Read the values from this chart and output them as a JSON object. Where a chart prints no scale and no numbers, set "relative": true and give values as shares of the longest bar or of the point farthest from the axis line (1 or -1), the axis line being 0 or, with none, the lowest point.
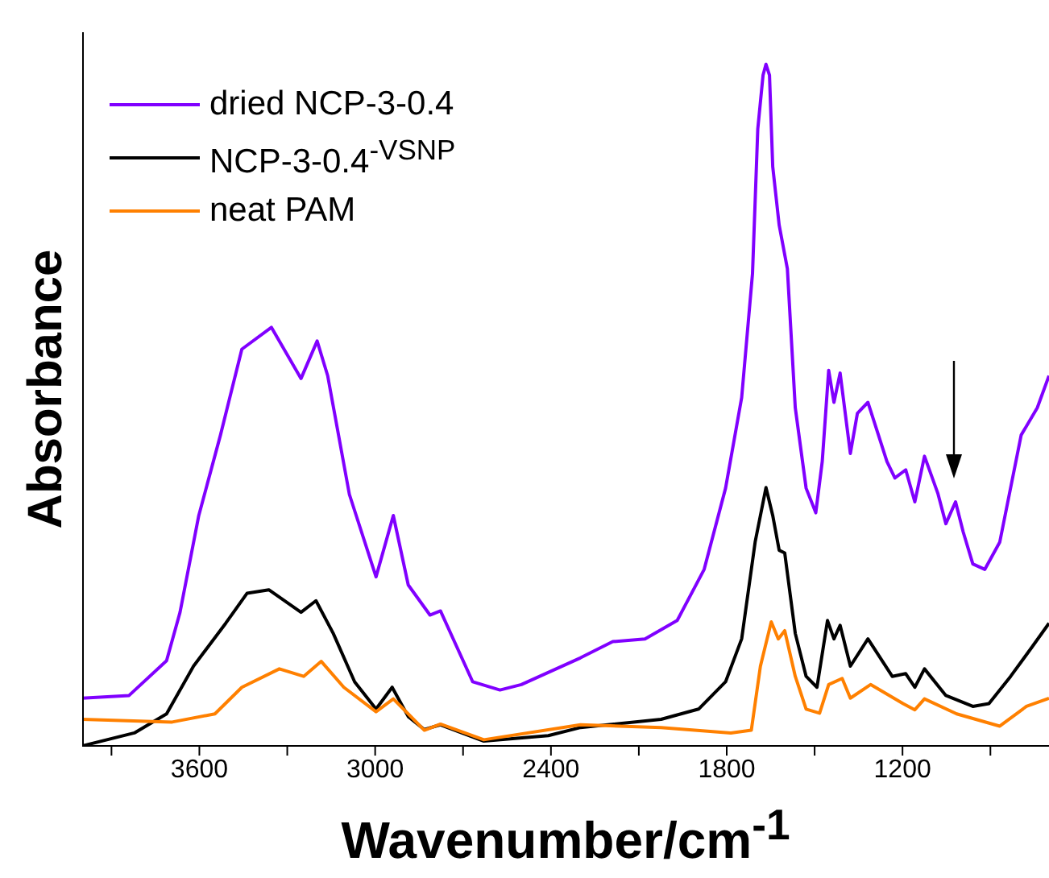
{
  "chart_data": {
    "type": "line",
    "xlabel": "Wavenumber/cm$^{-1}$",
    "ylabel": "Absorbance",
    "relative": true,
    "legend": "top left",
    "line_style": "solid",
    "marker": "none",
    "xlim": [
      4000,
      700
    ],
    "xticks": [
      {
        "value": 3900,
        "label": null
      },
      3600,
      {
        "value": 3300,
        "label": null
      },
      3000,
      {
        "value": 2700,
        "label": null
      },
      2400,
      {
        "value": 2100,
        "label": null
      },
      1800,
      {
        "value": 1500,
        "label": null
      },
      1200,
      {
        "value": 900,
        "label": null
      }
    ],
    "series": [
      {
        "name": "dried NCP-3-0.4",
        "color": "#8000ff",
        "x": [
          4000,
          3840,
          3712,
          3666,
          3602,
          3528,
          3455,
          3354,
          3253,
          3198,
          3162,
          3088,
          2997,
          2938,
          2887,
          2813,
          2777,
          2667,
          2574,
          2501,
          2300,
          2189,
          2079,
          1969,
          1877,
          1804,
          1749,
          1712,
          1694,
          1676,
          1666,
          1654,
          1643,
          1621,
          1593,
          1566,
          1529,
          1496,
          1474,
          1452,
          1434,
          1413,
          1378,
          1354,
          1318,
          1253,
          1226,
          1189,
          1158,
          1125,
          1079,
          1052,
          1019,
          993,
          960,
          919,
          868,
          795,
          740,
          700
        ],
        "values": [
          0.07,
          0.074,
          0.125,
          0.196,
          0.338,
          0.456,
          0.582,
          0.614,
          0.539,
          0.594,
          0.543,
          0.369,
          0.248,
          0.338,
          0.236,
          0.192,
          0.198,
          0.094,
          0.082,
          0.09,
          0.129,
          0.153,
          0.157,
          0.184,
          0.259,
          0.378,
          0.511,
          0.693,
          0.905,
          0.984,
          1.0,
          0.984,
          0.85,
          0.764,
          0.7,
          0.496,
          0.378,
          0.342,
          0.417,
          0.551,
          0.504,
          0.547,
          0.429,
          0.488,
          0.504,
          0.417,
          0.393,
          0.405,
          0.358,
          0.425,
          0.37,
          0.326,
          0.358,
          0.314,
          0.267,
          0.259,
          0.299,
          0.456,
          0.496,
          0.543
        ]
      },
      {
        "name": "NCP-3-0.4$^{-VSNP}$",
        "color": "#000000",
        "x": [
          4000,
          3822,
          3712,
          3620,
          3510,
          3437,
          3363,
          3253,
          3202,
          3143,
          3070,
          2997,
          2942,
          2887,
          2832,
          2777,
          2629,
          2409,
          2299,
          2024,
          1896,
          1804,
          1749,
          1703,
          1666,
          1643,
          1621,
          1602,
          1566,
          1529,
          1492,
          1456,
          1434,
          1413,
          1378,
          1318,
          1235,
          1189,
          1158,
          1125,
          1052,
          960,
          905,
          831,
          758,
          700
        ],
        "values": [
          0.0,
          0.019,
          0.047,
          0.117,
          0.18,
          0.224,
          0.229,
          0.196,
          0.213,
          0.165,
          0.094,
          0.054,
          0.086,
          0.043,
          0.024,
          0.031,
          0.007,
          0.015,
          0.027,
          0.039,
          0.054,
          0.094,
          0.157,
          0.299,
          0.379,
          0.338,
          0.287,
          0.283,
          0.165,
          0.102,
          0.086,
          0.184,
          0.157,
          0.177,
          0.117,
          0.157,
          0.102,
          0.106,
          0.086,
          0.113,
          0.074,
          0.058,
          0.062,
          0.102,
          0.145,
          0.18
        ]
      },
      {
        "name": "neat PAM",
        "color": "#ff8000",
        "x": [
          4000,
          3693,
          3547,
          3455,
          3327,
          3244,
          3184,
          3107,
          2997,
          2938,
          2832,
          2777,
          2629,
          2299,
          2024,
          1786,
          1716,
          1685,
          1648,
          1624,
          1602,
          1566,
          1529,
          1483,
          1452,
          1406,
          1378,
          1309,
          1198,
          1158,
          1125,
          1015,
          868,
          777,
          700
        ],
        "values": [
          0.039,
          0.035,
          0.047,
          0.086,
          0.113,
          0.102,
          0.124,
          0.086,
          0.05,
          0.069,
          0.023,
          0.032,
          0.009,
          0.031,
          0.027,
          0.019,
          0.023,
          0.117,
          0.182,
          0.157,
          0.169,
          0.102,
          0.054,
          0.048,
          0.09,
          0.099,
          0.07,
          0.09,
          0.062,
          0.053,
          0.069,
          0.047,
          0.029,
          0.058,
          0.07
        ]
      }
    ]
  }
}
